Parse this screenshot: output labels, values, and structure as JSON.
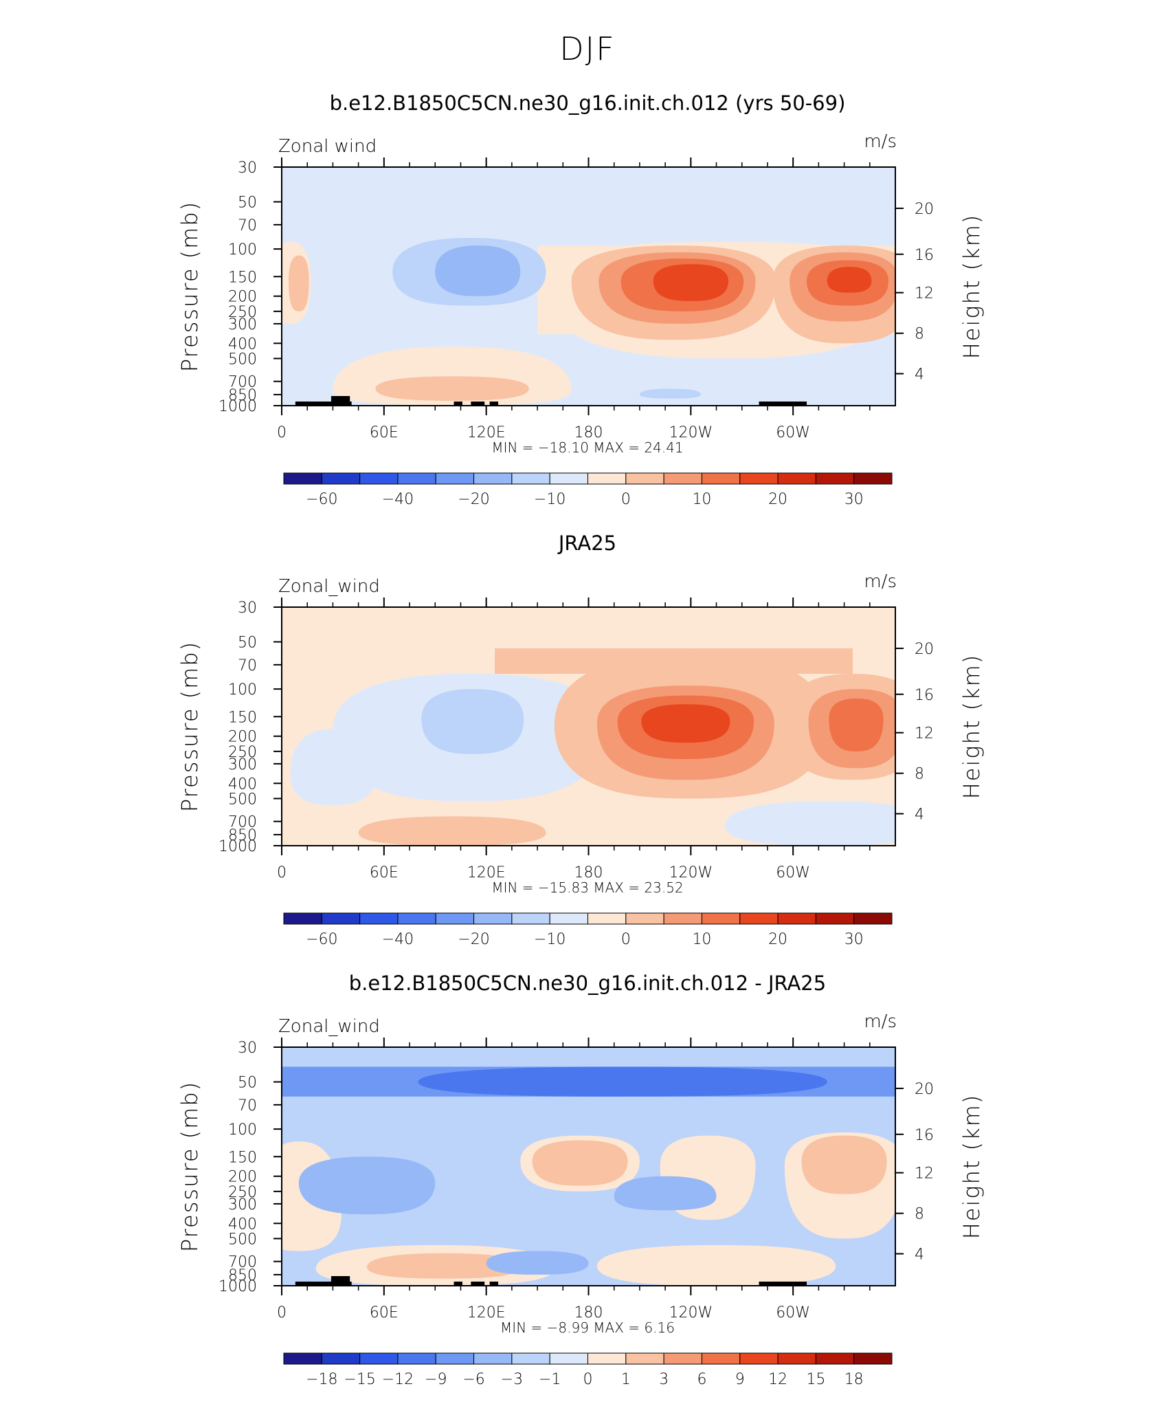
{
  "page_title": "DJF",
  "chart_data": [
    {
      "type": "heatmap",
      "title": "b.e12.B1850C5CN.ne30_g16.init.ch.012 (yrs 50-69)",
      "left_label": "Zonal wind",
      "units": "m/s",
      "ylabel": "Pressure (mb)",
      "y2label": "Height (km)",
      "x_ticks": [
        "0",
        "60E",
        "120E",
        "180",
        "120W",
        "60W"
      ],
      "y_ticks": [
        "30",
        "50",
        "70",
        "100",
        "150",
        "200",
        "250",
        "300",
        "400",
        "500",
        "700",
        "850",
        "1000"
      ],
      "y2_ticks": [
        "20",
        "16",
        "12",
        "8",
        "4"
      ],
      "stats": "MIN = −18.10   MAX =   24.41",
      "min": -18.1,
      "max": 24.41,
      "colorbar_labels": [
        "−60",
        "−40",
        "−20",
        "−10",
        "0",
        "10",
        "20",
        "30"
      ],
      "colorbar_levels": [
        -70,
        -60,
        -50,
        -40,
        -30,
        -20,
        -15,
        -10,
        -5,
        0,
        5,
        10,
        15,
        20,
        25,
        30,
        35
      ]
    },
    {
      "type": "heatmap",
      "title": "JRA25",
      "left_label": "Zonal_wind",
      "units": "m/s",
      "ylabel": "Pressure (mb)",
      "y2label": "Height (km)",
      "x_ticks": [
        "0",
        "60E",
        "120E",
        "180",
        "120W",
        "60W"
      ],
      "y_ticks": [
        "30",
        "50",
        "70",
        "100",
        "150",
        "200",
        "250",
        "300",
        "400",
        "500",
        "700",
        "850",
        "1000"
      ],
      "y2_ticks": [
        "20",
        "16",
        "12",
        "8",
        "4"
      ],
      "stats": "MIN = −15.83   MAX =   23.52",
      "min": -15.83,
      "max": 23.52,
      "colorbar_labels": [
        "−60",
        "−40",
        "−20",
        "−10",
        "0",
        "10",
        "20",
        "30"
      ],
      "colorbar_levels": [
        -70,
        -60,
        -50,
        -40,
        -30,
        -20,
        -15,
        -10,
        -5,
        0,
        5,
        10,
        15,
        20,
        25,
        30,
        35
      ]
    },
    {
      "type": "heatmap",
      "title": "b.e12.B1850C5CN.ne30_g16.init.ch.012 - JRA25",
      "left_label": "Zonal_wind",
      "units": "m/s",
      "ylabel": "Pressure (mb)",
      "y2label": "Height (km)",
      "x_ticks": [
        "0",
        "60E",
        "120E",
        "180",
        "120W",
        "60W"
      ],
      "y_ticks": [
        "30",
        "50",
        "70",
        "100",
        "150",
        "200",
        "250",
        "300",
        "400",
        "500",
        "700",
        "850",
        "1000"
      ],
      "y2_ticks": [
        "20",
        "16",
        "12",
        "8",
        "4"
      ],
      "stats": "MIN =   −8.99   MAX =    6.16",
      "min": -8.99,
      "max": 6.16,
      "colorbar_labels": [
        "−18",
        "−15",
        "−12",
        "−9",
        "−6",
        "−3",
        "−1",
        "0",
        "1",
        "3",
        "6",
        "9",
        "12",
        "15",
        "18"
      ],
      "colorbar_levels": [
        -18,
        -15,
        -12,
        -9,
        -6,
        -3,
        -1,
        0,
        1,
        3,
        6,
        9,
        12,
        15,
        18
      ]
    }
  ],
  "colors": {
    "neg8": "#1c1a8a",
    "neg7": "#1f3bc8",
    "neg6": "#2f58e8",
    "neg5": "#4a77ee",
    "neg4": "#6e98f3",
    "neg3": "#96b8f7",
    "neg2": "#bcd3fa",
    "neg1": "#dde9fb",
    "pos1": "#fde8d6",
    "pos2": "#f8c2a3",
    "pos3": "#f49b75",
    "pos4": "#ef7248",
    "pos5": "#e8461f",
    "pos6": "#d42d12",
    "pos7": "#b41708",
    "pos8": "#8b0a05"
  }
}
